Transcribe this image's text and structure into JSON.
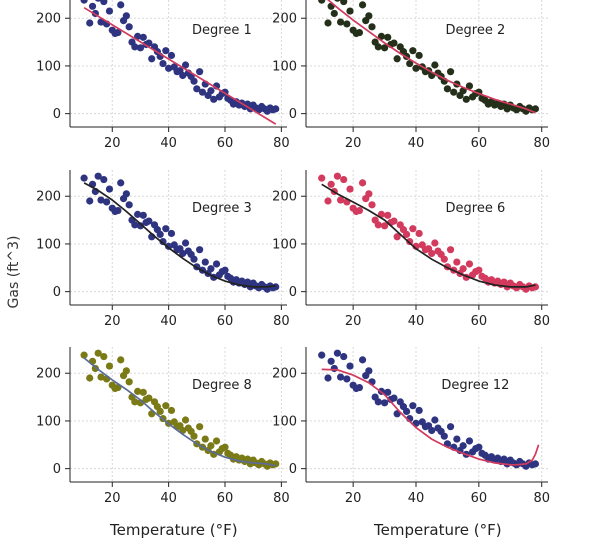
{
  "figure": {
    "ylabel": "Gas (ft^3)",
    "xlabel_left": "Temperature (°F)",
    "xlabel_right": "Temperature (°F)"
  },
  "chart_data": [
    {
      "type": "scatter",
      "panel": "p1",
      "title": "Degree 1",
      "point_color": "#2e3480",
      "curve_color": "#d23a5e",
      "xlim": [
        5,
        82
      ],
      "ylim": [
        -28,
        255
      ],
      "xticks": [
        20,
        40,
        60,
        80
      ],
      "yticks": [
        0,
        100,
        200
      ],
      "grid": true,
      "degree": 1,
      "curve": {
        "x": [
          10,
          78
        ],
        "y": [
          222,
          -22
        ]
      },
      "x": [
        10,
        12,
        13,
        14,
        15,
        16,
        17,
        18,
        19,
        20,
        21,
        22,
        23,
        24,
        25,
        26,
        27,
        28,
        29,
        30,
        31,
        32,
        33,
        34,
        35,
        36,
        37,
        38,
        39,
        40,
        41,
        42,
        43,
        44,
        45,
        46,
        47,
        48,
        49,
        50,
        51,
        52,
        53,
        54,
        55,
        56,
        57,
        58,
        59,
        60,
        61,
        62,
        63,
        64,
        65,
        66,
        67,
        68,
        69,
        70,
        71,
        72,
        73,
        74,
        75,
        76,
        77,
        78
      ],
      "y": [
        238,
        190,
        225,
        210,
        242,
        192,
        235,
        188,
        215,
        175,
        168,
        170,
        228,
        195,
        205,
        182,
        150,
        140,
        162,
        138,
        160,
        145,
        148,
        115,
        140,
        130,
        120,
        105,
        132,
        95,
        122,
        98,
        88,
        90,
        80,
        102,
        85,
        78,
        68,
        52,
        88,
        45,
        62,
        38,
        48,
        30,
        58,
        35,
        42,
        45,
        32,
        28,
        20,
        25,
        18,
        22,
        15,
        20,
        10,
        18,
        12,
        8,
        15,
        10,
        5,
        12,
        8,
        10
      ]
    },
    {
      "type": "scatter",
      "panel": "p2",
      "title": "Degree 2",
      "point_color": "#25301a",
      "curve_color": "#d23a5e",
      "xlim": [
        5,
        82
      ],
      "ylim": [
        -28,
        255
      ],
      "xticks": [
        20,
        40,
        60,
        80
      ],
      "yticks": [
        0,
        100,
        200
      ],
      "grid": true,
      "degree": 2,
      "curve": {
        "x": [
          10,
          15,
          20,
          25,
          30,
          35,
          40,
          45,
          50,
          55,
          60,
          65,
          70,
          75,
          78
        ],
        "y": [
          250,
          222,
          196,
          172,
          148,
          126,
          106,
          87,
          70,
          55,
          42,
          30,
          20,
          10,
          2
        ]
      },
      "x": [
        10,
        12,
        13,
        14,
        15,
        16,
        17,
        18,
        19,
        20,
        21,
        22,
        23,
        24,
        25,
        26,
        27,
        28,
        29,
        30,
        31,
        32,
        33,
        34,
        35,
        36,
        37,
        38,
        39,
        40,
        41,
        42,
        43,
        44,
        45,
        46,
        47,
        48,
        49,
        50,
        51,
        52,
        53,
        54,
        55,
        56,
        57,
        58,
        59,
        60,
        61,
        62,
        63,
        64,
        65,
        66,
        67,
        68,
        69,
        70,
        71,
        72,
        73,
        74,
        75,
        76,
        77,
        78
      ],
      "y": [
        238,
        190,
        225,
        210,
        242,
        192,
        235,
        188,
        215,
        175,
        168,
        170,
        228,
        195,
        205,
        182,
        150,
        140,
        162,
        138,
        160,
        145,
        148,
        115,
        140,
        130,
        120,
        105,
        132,
        95,
        122,
        98,
        88,
        90,
        80,
        102,
        85,
        78,
        68,
        52,
        88,
        45,
        62,
        38,
        48,
        30,
        58,
        35,
        42,
        45,
        32,
        28,
        20,
        25,
        18,
        22,
        15,
        20,
        10,
        18,
        12,
        8,
        15,
        10,
        5,
        12,
        8,
        10
      ]
    },
    {
      "type": "scatter",
      "panel": "p3",
      "title": "Degree 3",
      "point_color": "#2e3480",
      "curve_color": "#222222",
      "xlim": [
        5,
        82
      ],
      "ylim": [
        -28,
        255
      ],
      "xticks": [
        20,
        40,
        60,
        80
      ],
      "yticks": [
        0,
        100,
        200
      ],
      "grid": true,
      "degree": 3,
      "curve": {
        "x": [
          10,
          15,
          20,
          25,
          30,
          35,
          40,
          45,
          50,
          55,
          60,
          65,
          70,
          75,
          78
        ],
        "y": [
          228,
          212,
          192,
          168,
          142,
          116,
          92,
          70,
          50,
          34,
          22,
          14,
          10,
          10,
          12
        ]
      },
      "x": [
        10,
        12,
        13,
        14,
        15,
        16,
        17,
        18,
        19,
        20,
        21,
        22,
        23,
        24,
        25,
        26,
        27,
        28,
        29,
        30,
        31,
        32,
        33,
        34,
        35,
        36,
        37,
        38,
        39,
        40,
        41,
        42,
        43,
        44,
        45,
        46,
        47,
        48,
        49,
        50,
        51,
        52,
        53,
        54,
        55,
        56,
        57,
        58,
        59,
        60,
        61,
        62,
        63,
        64,
        65,
        66,
        67,
        68,
        69,
        70,
        71,
        72,
        73,
        74,
        75,
        76,
        77,
        78
      ],
      "y": [
        238,
        190,
        225,
        210,
        242,
        192,
        235,
        188,
        215,
        175,
        168,
        170,
        228,
        195,
        205,
        182,
        150,
        140,
        162,
        138,
        160,
        145,
        148,
        115,
        140,
        130,
        120,
        105,
        132,
        95,
        122,
        98,
        88,
        90,
        80,
        102,
        85,
        78,
        68,
        52,
        88,
        45,
        62,
        38,
        48,
        30,
        58,
        35,
        42,
        45,
        32,
        28,
        20,
        25,
        18,
        22,
        15,
        20,
        10,
        18,
        12,
        8,
        15,
        10,
        5,
        12,
        8,
        10
      ]
    },
    {
      "type": "scatter",
      "panel": "p4",
      "title": "Degree 6",
      "point_color": "#d23a5e",
      "curve_color": "#222222",
      "xlim": [
        5,
        82
      ],
      "ylim": [
        -28,
        255
      ],
      "xticks": [
        20,
        40,
        60,
        80
      ],
      "yticks": [
        0,
        100,
        200
      ],
      "grid": true,
      "degree": 6,
      "curve": {
        "x": [
          10,
          15,
          20,
          25,
          30,
          35,
          40,
          45,
          50,
          55,
          60,
          65,
          70,
          75,
          78
        ],
        "y": [
          225,
          205,
          188,
          170,
          150,
          120,
          90,
          68,
          50,
          35,
          22,
          14,
          10,
          10,
          14
        ]
      },
      "x": [
        10,
        12,
        13,
        14,
        15,
        16,
        17,
        18,
        19,
        20,
        21,
        22,
        23,
        24,
        25,
        26,
        27,
        28,
        29,
        30,
        31,
        32,
        33,
        34,
        35,
        36,
        37,
        38,
        39,
        40,
        41,
        42,
        43,
        44,
        45,
        46,
        47,
        48,
        49,
        50,
        51,
        52,
        53,
        54,
        55,
        56,
        57,
        58,
        59,
        60,
        61,
        62,
        63,
        64,
        65,
        66,
        67,
        68,
        69,
        70,
        71,
        72,
        73,
        74,
        75,
        76,
        77,
        78
      ],
      "y": [
        238,
        190,
        225,
        210,
        242,
        192,
        235,
        188,
        215,
        175,
        168,
        170,
        228,
        195,
        205,
        182,
        150,
        140,
        162,
        138,
        160,
        145,
        148,
        115,
        140,
        130,
        120,
        105,
        132,
        95,
        122,
        98,
        88,
        90,
        80,
        102,
        85,
        78,
        68,
        52,
        88,
        45,
        62,
        38,
        48,
        30,
        58,
        35,
        42,
        45,
        32,
        28,
        20,
        25,
        18,
        22,
        15,
        20,
        10,
        18,
        12,
        8,
        15,
        10,
        5,
        12,
        8,
        10
      ]
    },
    {
      "type": "scatter",
      "panel": "p5",
      "title": "Degree 8",
      "point_color": "#7a7a16",
      "curve_color": "#5b6c99",
      "xlim": [
        5,
        82
      ],
      "ylim": [
        -28,
        255
      ],
      "xticks": [
        20,
        40,
        60,
        80
      ],
      "yticks": [
        0,
        100,
        200
      ],
      "grid": true,
      "degree": 8,
      "curve": {
        "x": [
          10,
          15,
          20,
          25,
          30,
          35,
          40,
          45,
          50,
          55,
          60,
          65,
          70,
          75,
          78
        ],
        "y": [
          232,
          208,
          186,
          166,
          144,
          118,
          94,
          72,
          52,
          36,
          24,
          16,
          12,
          10,
          6
        ]
      },
      "x": [
        10,
        12,
        13,
        14,
        15,
        16,
        17,
        18,
        19,
        20,
        21,
        22,
        23,
        24,
        25,
        26,
        27,
        28,
        29,
        30,
        31,
        32,
        33,
        34,
        35,
        36,
        37,
        38,
        39,
        40,
        41,
        42,
        43,
        44,
        45,
        46,
        47,
        48,
        49,
        50,
        51,
        52,
        53,
        54,
        55,
        56,
        57,
        58,
        59,
        60,
        61,
        62,
        63,
        64,
        65,
        66,
        67,
        68,
        69,
        70,
        71,
        72,
        73,
        74,
        75,
        76,
        77,
        78
      ],
      "y": [
        238,
        190,
        225,
        210,
        242,
        192,
        235,
        188,
        215,
        175,
        168,
        170,
        228,
        195,
        205,
        182,
        150,
        140,
        162,
        138,
        160,
        145,
        148,
        115,
        140,
        130,
        120,
        105,
        132,
        95,
        122,
        98,
        88,
        90,
        80,
        102,
        85,
        78,
        68,
        52,
        88,
        45,
        62,
        38,
        48,
        30,
        58,
        35,
        42,
        45,
        32,
        28,
        20,
        25,
        18,
        22,
        15,
        20,
        10,
        18,
        12,
        8,
        15,
        10,
        5,
        12,
        8,
        10
      ]
    },
    {
      "type": "scatter",
      "panel": "p6",
      "title": "Degree 12",
      "point_color": "#2e3480",
      "curve_color": "#d23a5e",
      "xlim": [
        5,
        82
      ],
      "ylim": [
        -28,
        255
      ],
      "xticks": [
        20,
        40,
        60,
        80
      ],
      "yticks": [
        0,
        100,
        200
      ],
      "grid": true,
      "degree": 12,
      "curve": {
        "x": [
          10,
          15,
          20,
          25,
          30,
          35,
          40,
          45,
          50,
          55,
          60,
          65,
          70,
          72,
          75,
          77,
          78,
          79
        ],
        "y": [
          208,
          207,
          196,
          180,
          155,
          118,
          86,
          62,
          45,
          32,
          20,
          12,
          8,
          8,
          10,
          18,
          30,
          50
        ]
      },
      "x": [
        10,
        12,
        13,
        14,
        15,
        16,
        17,
        18,
        19,
        20,
        21,
        22,
        23,
        24,
        25,
        26,
        27,
        28,
        29,
        30,
        31,
        32,
        33,
        34,
        35,
        36,
        37,
        38,
        39,
        40,
        41,
        42,
        43,
        44,
        45,
        46,
        47,
        48,
        49,
        50,
        51,
        52,
        53,
        54,
        55,
        56,
        57,
        58,
        59,
        60,
        61,
        62,
        63,
        64,
        65,
        66,
        67,
        68,
        69,
        70,
        71,
        72,
        73,
        74,
        75,
        76,
        77,
        78
      ],
      "y": [
        238,
        190,
        225,
        210,
        242,
        192,
        235,
        188,
        215,
        175,
        168,
        170,
        228,
        195,
        205,
        182,
        150,
        140,
        162,
        138,
        160,
        145,
        148,
        115,
        140,
        130,
        120,
        105,
        132,
        95,
        122,
        98,
        88,
        90,
        80,
        102,
        85,
        78,
        68,
        52,
        88,
        45,
        62,
        38,
        48,
        30,
        58,
        35,
        42,
        45,
        32,
        28,
        20,
        25,
        18,
        22,
        15,
        20,
        10,
        18,
        12,
        8,
        15,
        10,
        5,
        12,
        8,
        10
      ]
    }
  ]
}
